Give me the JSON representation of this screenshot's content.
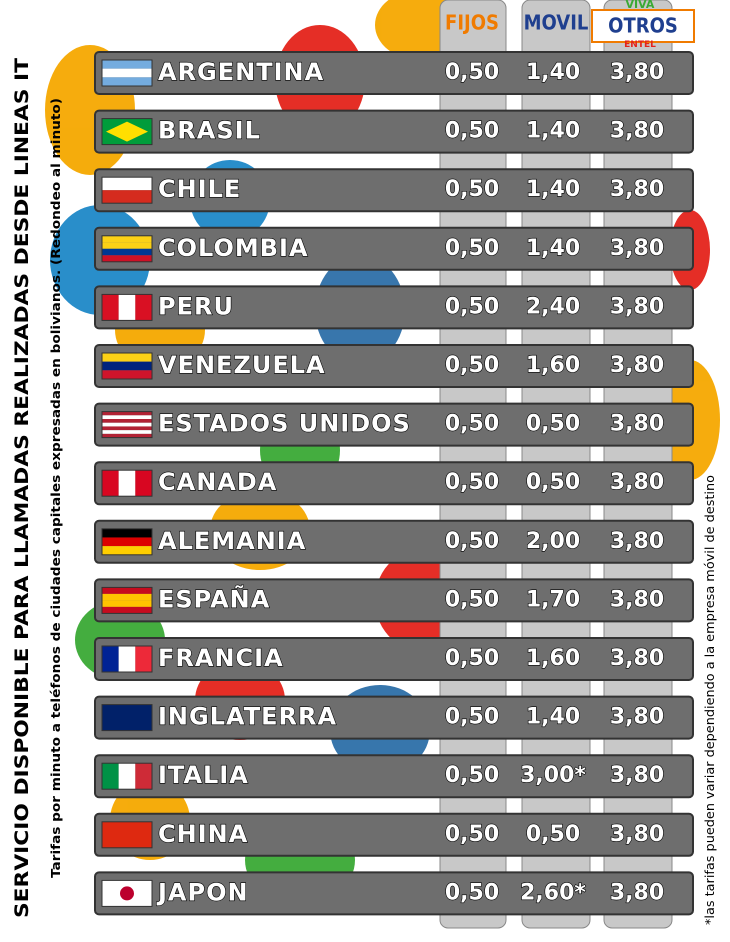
{
  "title": "SERVICIO DISPONIBLE PARA LLAMADAS REALIZADAS DESDE LINEAS IT",
  "subtitle": "Tarifas por minuto a teléfonos de ciudades capitales expresadas en bolivianos. (Redondeo al minuto)",
  "footnote": "*las tarifas pueden variar dependiendo a la empresa móvil de destino",
  "table": {
    "header": [
      "FIJOS",
      "MOVIL",
      "OTROS"
    ],
    "logo_top": "VIVA",
    "logo_bottom": "ENTEL",
    "rows": [
      [
        "ARGENTINA",
        "0,50",
        "1,40",
        "3,80"
      ],
      [
        "BRASIL",
        "0,50",
        "1,40",
        "3,80"
      ],
      [
        "CHILE",
        "0,50",
        "1,40",
        "3,80"
      ],
      [
        "COLOMBIA",
        "0,50",
        "1,40",
        "3,80"
      ],
      [
        "PERU",
        "0,50",
        "2,40",
        "3,80"
      ],
      [
        "VENEZUELA",
        "0,50",
        "1,60",
        "3,80"
      ],
      [
        "ESTADOS UNIDOS",
        "0,50",
        "0,50",
        "3,80"
      ],
      [
        "CANADA",
        "0,50",
        "0,50",
        "3,80"
      ],
      [
        "ALEMANIA",
        "0,50",
        "2,00",
        "3,80"
      ],
      [
        "ESPAÑA",
        "0,50",
        "1,70",
        "3,80"
      ],
      [
        "FRANCIA",
        "0,50",
        "1,60",
        "3,80"
      ],
      [
        "INGLATERRA",
        "0,50",
        "1,40",
        "3,80"
      ],
      [
        "ITALIA",
        "0,50",
        "3,00*",
        "3,80"
      ],
      [
        "CHINA",
        "0,50",
        "0,50",
        "3,80"
      ],
      [
        "JAPON",
        "0,50",
        "2,60*",
        "3,80"
      ]
    ]
  }
}
